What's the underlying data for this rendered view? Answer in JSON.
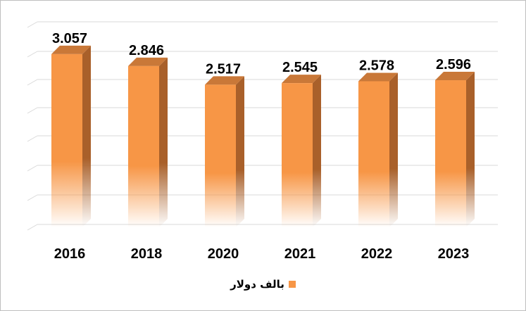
{
  "chart_data": {
    "type": "bar",
    "categories": [
      "2016",
      "2018",
      "2020",
      "2021",
      "2022",
      "2023"
    ],
    "series": [
      {
        "name": "بالف دولار",
        "values": [
          3.057,
          2.846,
          2.517,
          2.545,
          2.578,
          2.596
        ],
        "value_labels": [
          "3.057",
          "2.846",
          "2.517",
          "2.545",
          "2.578",
          "2.596"
        ]
      }
    ],
    "title": "",
    "xlabel": "",
    "ylabel": "",
    "ylim": [
      0,
      3.5
    ],
    "grid": true,
    "legend": "bottom",
    "style": "3d-column"
  },
  "colors": {
    "bar_front": "#f79646",
    "bar_side": "#a9602a",
    "bar_top": "#c97838",
    "grid": "#d9d9d9"
  }
}
